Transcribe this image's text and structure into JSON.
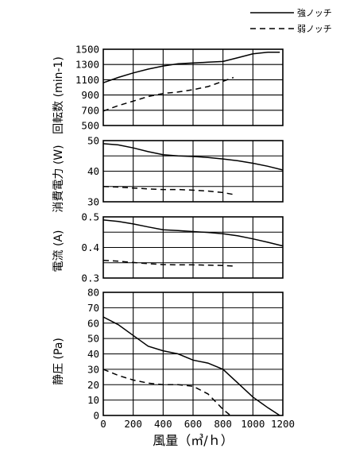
{
  "legend": [
    {
      "label": "強ノッチ",
      "style": "solid"
    },
    {
      "label": "弱ノッチ",
      "style": "dashed"
    }
  ],
  "x_axis": {
    "label": "風量（㎥/ｈ）",
    "ticks": [
      "0",
      "200",
      "400",
      "600",
      "800",
      "1000",
      "1200"
    ]
  },
  "chart_data": [
    {
      "type": "line",
      "ylabel": "回転数 (min-1)",
      "xlim": [
        0,
        1200
      ],
      "ylim": [
        500,
        1500
      ],
      "y_ticks": [
        "1500",
        "1300",
        "1100",
        "900",
        "700",
        "500"
      ],
      "series": [
        {
          "name": "強ノッチ",
          "style": "solid",
          "x": [
            0,
            100,
            200,
            300,
            400,
            500,
            600,
            700,
            800,
            900,
            1000,
            1100,
            1180
          ],
          "y": [
            1060,
            1130,
            1190,
            1240,
            1280,
            1310,
            1320,
            1330,
            1340,
            1390,
            1440,
            1460,
            1460
          ]
        },
        {
          "name": "弱ノッチ",
          "style": "dashed",
          "x": [
            0,
            100,
            200,
            300,
            400,
            500,
            600,
            700,
            800,
            870
          ],
          "y": [
            690,
            760,
            820,
            880,
            920,
            940,
            970,
            1010,
            1080,
            1130
          ]
        }
      ]
    },
    {
      "type": "line",
      "ylabel": "消費電力 (W)",
      "xlim": [
        0,
        1200
      ],
      "ylim": [
        30,
        50
      ],
      "y_ticks": [
        "50",
        "40",
        "30"
      ],
      "series": [
        {
          "name": "強ノッチ",
          "style": "solid",
          "x": [
            0,
            100,
            200,
            300,
            400,
            500,
            600,
            700,
            800,
            900,
            1000,
            1100,
            1200
          ],
          "y": [
            49,
            48.6,
            47.6,
            46.4,
            45.4,
            45,
            44.8,
            44.5,
            44,
            43.4,
            42.6,
            41.6,
            40.4
          ]
        },
        {
          "name": "弱ノッチ",
          "style": "dashed",
          "x": [
            0,
            100,
            200,
            300,
            400,
            500,
            600,
            700,
            800,
            870
          ],
          "y": [
            35,
            34.8,
            34.5,
            34.2,
            34,
            34,
            33.8,
            33.5,
            33,
            32.4
          ]
        }
      ]
    },
    {
      "type": "line",
      "ylabel": "電流 (A)",
      "xlim": [
        0,
        1200
      ],
      "ylim": [
        0.3,
        0.5
      ],
      "y_ticks": [
        "0.5",
        "0.4",
        "0.3"
      ],
      "series": [
        {
          "name": "強ノッチ",
          "style": "solid",
          "x": [
            0,
            100,
            200,
            300,
            400,
            500,
            600,
            700,
            800,
            900,
            1000,
            1100,
            1200
          ],
          "y": [
            0.49,
            0.485,
            0.477,
            0.467,
            0.458,
            0.455,
            0.452,
            0.449,
            0.445,
            0.438,
            0.428,
            0.417,
            0.405
          ]
        },
        {
          "name": "弱ノッチ",
          "style": "dashed",
          "x": [
            0,
            100,
            200,
            300,
            400,
            500,
            600,
            700,
            800,
            870
          ],
          "y": [
            0.358,
            0.355,
            0.351,
            0.347,
            0.344,
            0.343,
            0.343,
            0.342,
            0.341,
            0.339
          ]
        }
      ]
    },
    {
      "type": "line",
      "ylabel": "静圧 (Pa)",
      "xlim": [
        0,
        1200
      ],
      "ylim": [
        0,
        80
      ],
      "y_ticks": [
        "80",
        "70",
        "60",
        "50",
        "40",
        "30",
        "20",
        "10",
        "0"
      ],
      "series": [
        {
          "name": "強ノッチ",
          "style": "solid",
          "x": [
            0,
            100,
            200,
            300,
            400,
            500,
            600,
            700,
            800,
            900,
            1000,
            1100,
            1180
          ],
          "y": [
            64,
            59,
            52,
            45,
            42,
            40,
            36,
            34,
            30,
            21,
            12,
            5,
            0
          ]
        },
        {
          "name": "弱ノッチ",
          "style": "dashed",
          "x": [
            0,
            100,
            200,
            300,
            400,
            500,
            600,
            700,
            750,
            800,
            850
          ],
          "y": [
            30,
            26,
            23,
            21,
            20,
            20,
            19,
            14,
            9,
            4,
            0
          ]
        }
      ]
    }
  ]
}
